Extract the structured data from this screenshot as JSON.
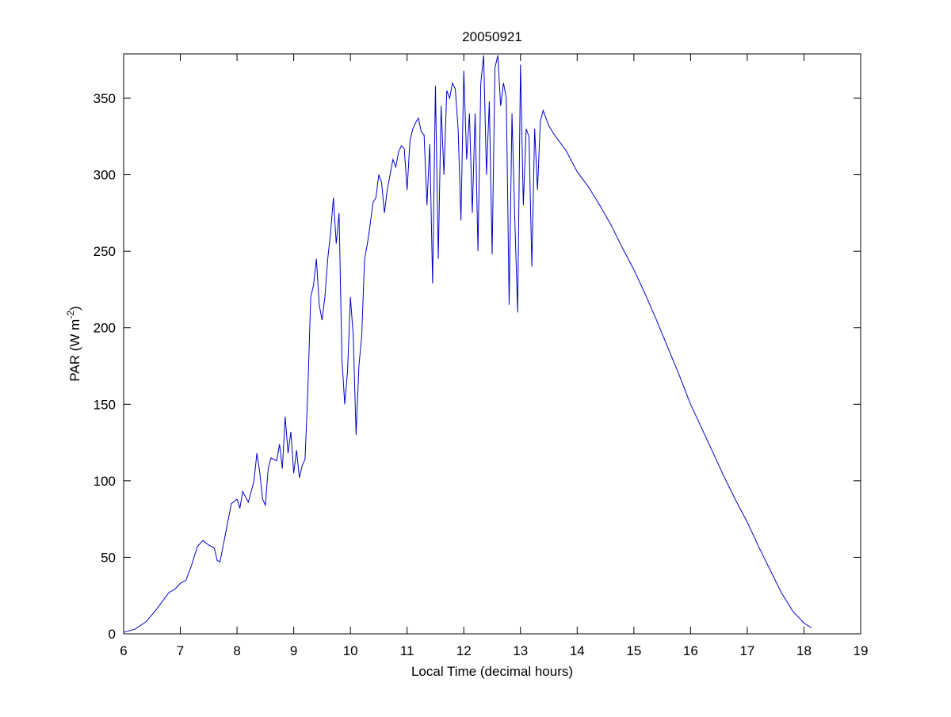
{
  "chart_data": {
    "type": "line",
    "title": "20050921",
    "xlabel": "Local Time (decimal hours)",
    "ylabel": [
      "PAR (W m",
      "-2",
      ")"
    ],
    "color": "#0000cc",
    "x": [
      6.0,
      6.2,
      6.4,
      6.6,
      6.8,
      6.9,
      7.0,
      7.1,
      7.2,
      7.3,
      7.4,
      7.5,
      7.6,
      7.65,
      7.7,
      7.8,
      7.9,
      8.0,
      8.05,
      8.1,
      8.2,
      8.3,
      8.35,
      8.4,
      8.45,
      8.5,
      8.55,
      8.6,
      8.7,
      8.75,
      8.8,
      8.85,
      8.9,
      8.95,
      9.0,
      9.05,
      9.1,
      9.15,
      9.2,
      9.25,
      9.3,
      9.35,
      9.4,
      9.45,
      9.5,
      9.55,
      9.6,
      9.65,
      9.7,
      9.75,
      9.8,
      9.85,
      9.9,
      9.95,
      10.0,
      10.05,
      10.1,
      10.15,
      10.2,
      10.25,
      10.3,
      10.35,
      10.4,
      10.45,
      10.5,
      10.55,
      10.6,
      10.65,
      10.7,
      10.75,
      10.8,
      10.85,
      10.9,
      10.95,
      11.0,
      11.05,
      11.1,
      11.15,
      11.2,
      11.25,
      11.3,
      11.35,
      11.4,
      11.45,
      11.5,
      11.55,
      11.6,
      11.65,
      11.7,
      11.75,
      11.8,
      11.85,
      11.9,
      11.95,
      12.0,
      12.05,
      12.1,
      12.15,
      12.2,
      12.25,
      12.3,
      12.35,
      12.4,
      12.45,
      12.5,
      12.55,
      12.6,
      12.65,
      12.7,
      12.75,
      12.8,
      12.85,
      12.9,
      12.95,
      13.0,
      13.05,
      13.1,
      13.15,
      13.2,
      13.25,
      13.3,
      13.35,
      13.4,
      13.5,
      13.6,
      13.8,
      14.0,
      14.2,
      14.4,
      14.6,
      14.8,
      15.0,
      15.2,
      15.4,
      15.6,
      15.8,
      16.0,
      16.2,
      16.4,
      16.6,
      16.8,
      17.0,
      17.2,
      17.4,
      17.6,
      17.8,
      18.0,
      18.13
    ],
    "values": [
      1,
      3,
      8,
      17,
      27,
      29,
      33,
      35,
      45,
      57,
      61,
      58,
      56,
      48,
      47,
      66,
      85,
      88,
      82,
      93,
      86,
      100,
      118,
      106,
      88,
      84,
      108,
      115,
      113,
      124,
      108,
      142,
      118,
      132,
      105,
      120,
      102,
      110,
      114,
      160,
      220,
      228,
      245,
      215,
      205,
      220,
      245,
      262,
      285,
      255,
      275,
      180,
      150,
      172,
      220,
      195,
      130,
      175,
      195,
      245,
      255,
      268,
      282,
      285,
      300,
      295,
      275,
      290,
      300,
      310,
      305,
      315,
      319,
      317,
      290,
      322,
      330,
      334,
      337,
      328,
      326,
      280,
      320,
      229,
      358,
      245,
      345,
      300,
      355,
      350,
      360,
      356,
      330,
      270,
      368,
      310,
      340,
      275,
      340,
      250,
      360,
      378,
      300,
      348,
      248,
      370,
      378,
      345,
      360,
      350,
      215,
      340,
      270,
      210,
      372,
      280,
      330,
      325,
      240,
      330,
      290,
      335,
      342,
      332,
      326,
      316,
      302,
      292,
      280,
      267,
      252,
      238,
      222,
      205,
      187,
      169,
      150,
      134,
      118,
      102,
      87,
      73,
      57,
      42,
      27,
      15,
      7,
      4
    ],
    "xlim": [
      6,
      19
    ],
    "xticks": [
      6,
      7,
      8,
      9,
      10,
      11,
      12,
      13,
      14,
      15,
      16,
      17,
      18,
      19
    ],
    "ylim": [
      0,
      379
    ],
    "yticks": [
      0,
      50,
      100,
      150,
      200,
      250,
      300,
      350
    ]
  }
}
